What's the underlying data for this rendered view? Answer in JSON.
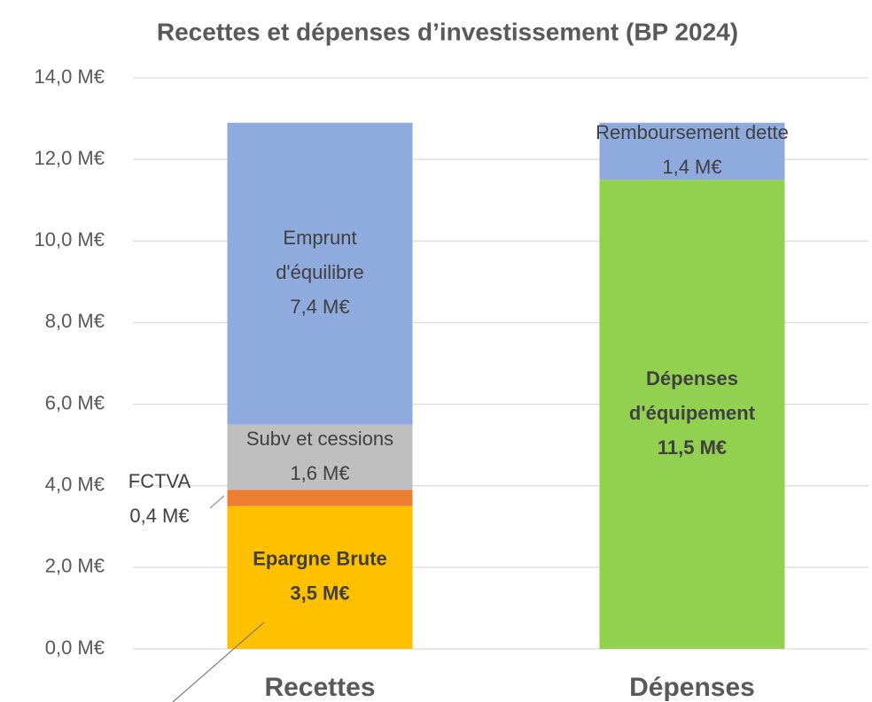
{
  "chart_data": {
    "type": "stacked_bar",
    "title": "Recettes et dépenses d’investissement (BP 2024)",
    "categories": [
      "Recettes",
      "Dépenses"
    ],
    "series": [
      {
        "name": "Epargne Brute",
        "color": "#ffc000",
        "values": [
          3.5,
          null
        ],
        "value_labels": [
          "3,5 M€",
          null
        ]
      },
      {
        "name": "FCTVA",
        "color": "#ed7d31",
        "values": [
          0.4,
          null
        ],
        "value_labels": [
          "0,4 M€",
          null
        ]
      },
      {
        "name": "Subv et cessions",
        "color": "#bfbfbf",
        "values": [
          1.6,
          null
        ],
        "value_labels": [
          "1,6 M€",
          null
        ]
      },
      {
        "name": "Emprunt d'équilibre",
        "color": "#8faadc",
        "values": [
          7.4,
          null
        ],
        "value_labels": [
          "7,4 M€",
          null
        ]
      },
      {
        "name": "Dépenses d'équipement",
        "color": "#92d050",
        "values": [
          null,
          11.5
        ],
        "value_labels": [
          null,
          "11,5 M€"
        ]
      },
      {
        "name": "Remboursement dette",
        "color": "#8faadc",
        "values": [
          null,
          1.4
        ],
        "value_labels": [
          null,
          "1,4 M€"
        ]
      }
    ],
    "ylim": [
      0,
      14
    ],
    "yticks": [
      {
        "value": 0,
        "label": "0,0 M€"
      },
      {
        "value": 2,
        "label": "2,0 M€"
      },
      {
        "value": 4,
        "label": "4,0 M€"
      },
      {
        "value": 6,
        "label": "6,0 M€"
      },
      {
        "value": 8,
        "label": "8,0 M€"
      },
      {
        "value": 10,
        "label": "10,0 M€"
      },
      {
        "value": 12,
        "label": "12,0 M€"
      },
      {
        "value": 14,
        "label": "14,0 M€"
      }
    ],
    "grid": true
  }
}
